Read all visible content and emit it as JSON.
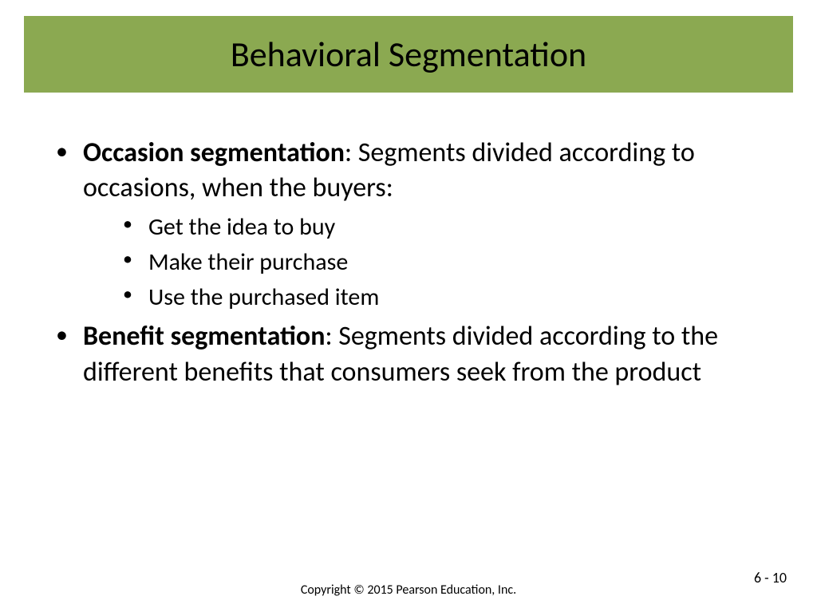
{
  "colors": {
    "title_bar_bg": "#8ba951",
    "slide_bg": "#ffffff",
    "text": "#000000"
  },
  "typography": {
    "title_fontsize": 44,
    "body_fontsize": 34,
    "sub_fontsize": 30,
    "footer_fontsize": 16,
    "pagenum_fontsize": 18,
    "font_family": "Calibri"
  },
  "title": "Behavioral Segmentation",
  "bullets": [
    {
      "bold_lead": "Occasion segmentation",
      "rest": ": Segments divided according to occasions, when the buyers:",
      "sub": [
        "Get the idea to buy",
        "Make their purchase",
        "Use the purchased item"
      ]
    },
    {
      "bold_lead": "Benefit segmentation",
      "rest": ": Segments divided according to the different benefits that consumers seek from the product",
      "sub": []
    }
  ],
  "copyright": "Copyright © 2015 Pearson Education, Inc.",
  "page_number": "6 - 10"
}
